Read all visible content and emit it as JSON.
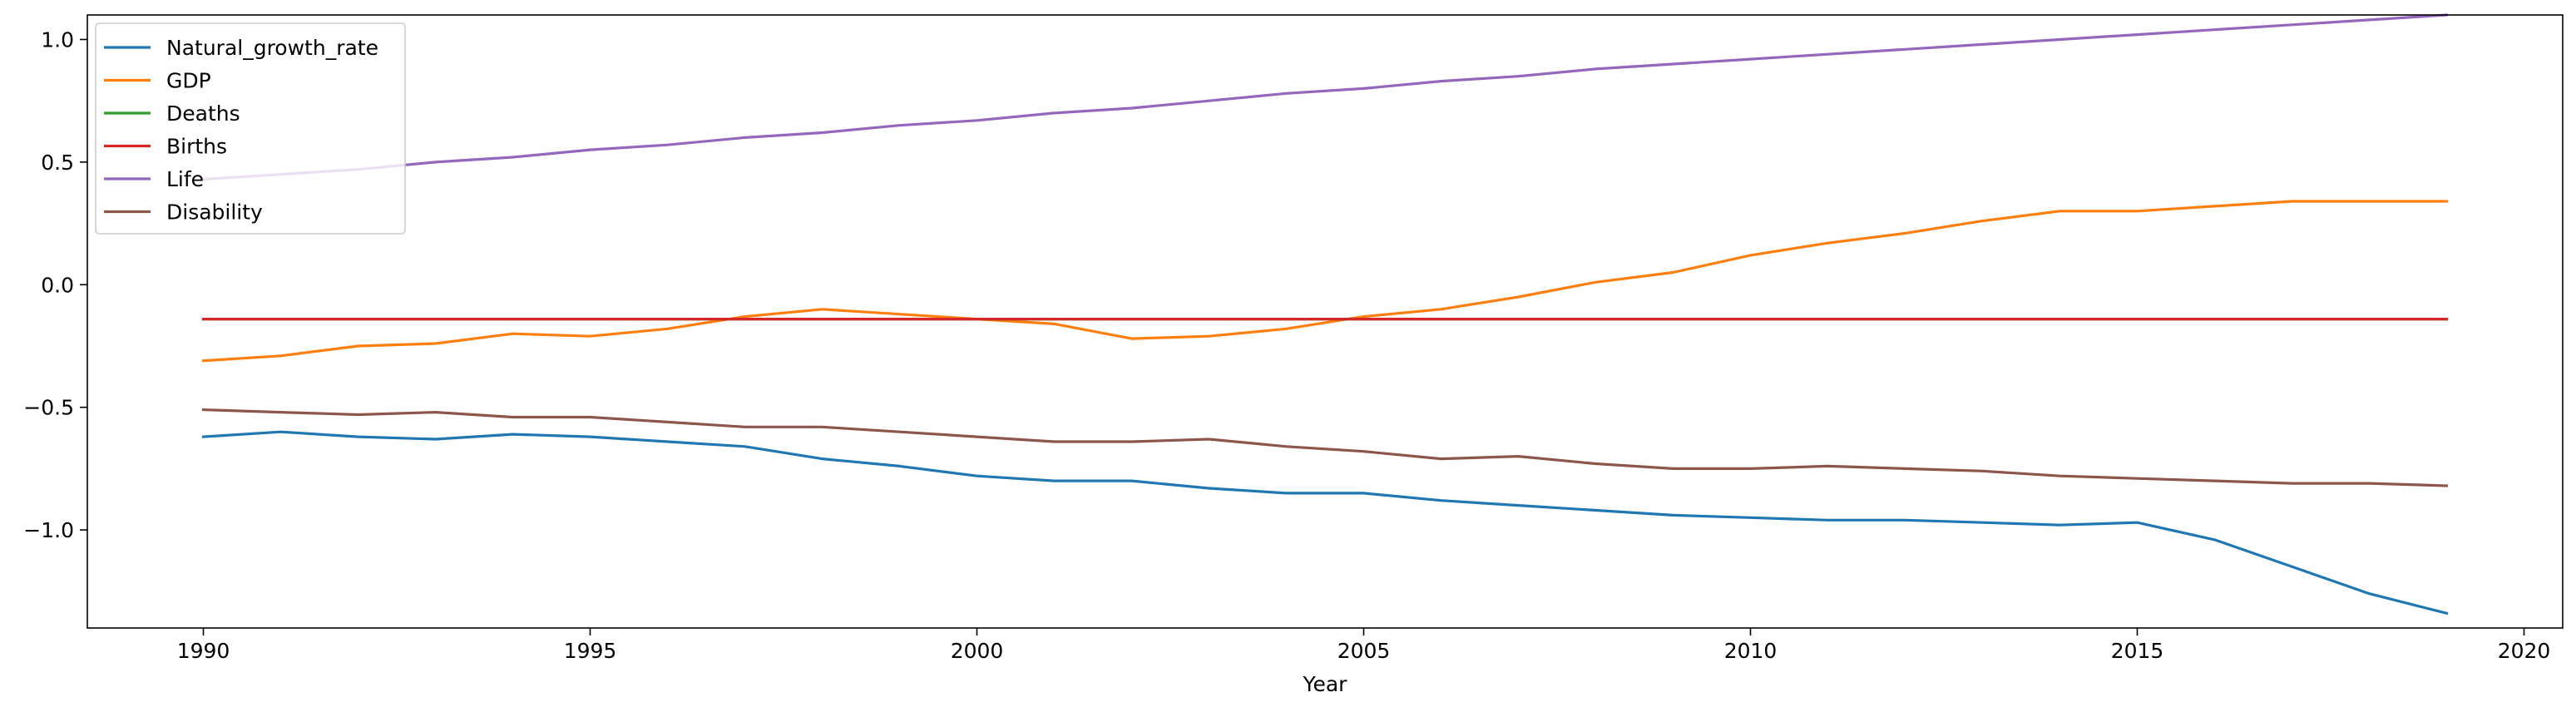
{
  "chart_data": {
    "type": "line",
    "title": "",
    "xlabel": "Year",
    "ylabel": "",
    "xlim": [
      1988.5,
      2020.5
    ],
    "ylim": [
      -1.4,
      1.1
    ],
    "xticks": [
      1990,
      1995,
      2000,
      2005,
      2010,
      2015,
      2020
    ],
    "yticks": [
      -1.0,
      -0.5,
      0.0,
      0.5,
      1.0
    ],
    "xtick_labels": [
      "1990",
      "1995",
      "2000",
      "2005",
      "2010",
      "2015",
      "2020"
    ],
    "ytick_labels": [
      "−1.0",
      "−0.5",
      "0.0",
      "0.5",
      "1.0"
    ],
    "grid": false,
    "legend_position": "top-left",
    "x": [
      1990,
      1991,
      1992,
      1993,
      1994,
      1995,
      1996,
      1997,
      1998,
      1999,
      2000,
      2001,
      2002,
      2003,
      2004,
      2005,
      2006,
      2007,
      2008,
      2009,
      2010,
      2011,
      2012,
      2013,
      2014,
      2015,
      2016,
      2017,
      2018,
      2019
    ],
    "series": [
      {
        "name": "Natural_growth_rate",
        "color": "#1f77b4",
        "values": [
          -0.62,
          -0.6,
          -0.62,
          -0.63,
          -0.61,
          -0.62,
          -0.64,
          -0.66,
          -0.71,
          -0.74,
          -0.78,
          -0.8,
          -0.8,
          -0.83,
          -0.85,
          -0.85,
          -0.88,
          -0.9,
          -0.92,
          -0.94,
          -0.95,
          -0.96,
          -0.96,
          -0.97,
          -0.98,
          -0.97,
          -1.04,
          -1.15,
          -1.26,
          -1.34
        ]
      },
      {
        "name": "GDP",
        "color": "#ff7f0e",
        "values": [
          -0.31,
          -0.29,
          -0.25,
          -0.24,
          -0.2,
          -0.21,
          -0.18,
          -0.13,
          -0.1,
          -0.12,
          -0.14,
          -0.16,
          -0.22,
          -0.21,
          -0.18,
          -0.13,
          -0.1,
          -0.05,
          0.01,
          0.05,
          0.12,
          0.17,
          0.21,
          0.26,
          0.3,
          0.3,
          0.32,
          0.34,
          0.34,
          0.34
        ]
      },
      {
        "name": "Deaths",
        "color": "#2ca02c",
        "values": [
          -0.14,
          -0.14,
          -0.14,
          -0.14,
          -0.14,
          -0.14,
          -0.14,
          -0.14,
          -0.14,
          -0.14,
          -0.14,
          -0.14,
          -0.14,
          -0.14,
          -0.14,
          -0.14,
          -0.14,
          -0.14,
          -0.14,
          -0.14,
          -0.14,
          -0.14,
          -0.14,
          -0.14,
          -0.14,
          -0.14,
          -0.14,
          -0.14,
          -0.14,
          -0.14
        ]
      },
      {
        "name": "Births",
        "color": "#d62728",
        "values": [
          -0.14,
          -0.14,
          -0.14,
          -0.14,
          -0.14,
          -0.14,
          -0.14,
          -0.14,
          -0.14,
          -0.14,
          -0.14,
          -0.14,
          -0.14,
          -0.14,
          -0.14,
          -0.14,
          -0.14,
          -0.14,
          -0.14,
          -0.14,
          -0.14,
          -0.14,
          -0.14,
          -0.14,
          -0.14,
          -0.14,
          -0.14,
          -0.14,
          -0.14,
          -0.14
        ]
      },
      {
        "name": "Life",
        "color": "#9467bd",
        "values": [
          0.43,
          0.45,
          0.47,
          0.5,
          0.52,
          0.55,
          0.57,
          0.6,
          0.62,
          0.65,
          0.67,
          0.7,
          0.72,
          0.75,
          0.78,
          0.8,
          0.83,
          0.85,
          0.88,
          0.9,
          0.92,
          0.94,
          0.96,
          0.98,
          1.0,
          1.02,
          1.04,
          1.06,
          1.08,
          1.1
        ]
      },
      {
        "name": "Disability",
        "color": "#8c564b",
        "values": [
          -0.51,
          -0.52,
          -0.53,
          -0.52,
          -0.54,
          -0.54,
          -0.56,
          -0.58,
          -0.58,
          -0.6,
          -0.62,
          -0.64,
          -0.64,
          -0.63,
          -0.66,
          -0.68,
          -0.71,
          -0.7,
          -0.73,
          -0.75,
          -0.75,
          -0.74,
          -0.75,
          -0.76,
          -0.78,
          -0.79,
          -0.8,
          -0.81,
          -0.81,
          -0.82
        ]
      }
    ]
  }
}
